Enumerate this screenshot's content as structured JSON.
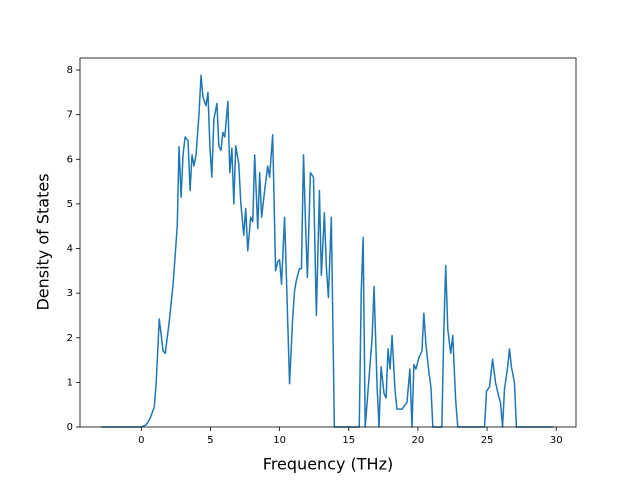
{
  "chart_data": {
    "type": "line",
    "x_label": "Frequency (THz)",
    "y_label": "Density of States",
    "xlim": [
      -4.43,
      31.43
    ],
    "ylim": [
      0,
      8.27
    ],
    "xticks": [
      0,
      5,
      10,
      15,
      20,
      25,
      30
    ],
    "yticks": [
      0,
      1,
      2,
      3,
      4,
      5,
      6,
      7,
      8
    ],
    "series": [
      {
        "color": "#1f77b4",
        "x": [
          -2.88,
          0,
          0.36,
          0.65,
          0.94,
          1.08,
          1.3,
          1.58,
          1.73,
          2.0,
          2.3,
          2.6,
          2.73,
          2.88,
          3.02,
          3.17,
          3.38,
          3.53,
          3.67,
          3.81,
          3.96,
          4.17,
          4.32,
          4.46,
          4.68,
          4.82,
          4.96,
          5.1,
          5.25,
          5.47,
          5.61,
          5.76,
          5.9,
          6.04,
          6.26,
          6.4,
          6.55,
          6.69,
          6.83,
          7.05,
          7.2,
          7.41,
          7.55,
          7.7,
          7.91,
          8.06,
          8.2,
          8.42,
          8.56,
          8.7,
          8.92,
          9.14,
          9.28,
          9.5,
          9.71,
          9.86,
          10.0,
          10.14,
          10.36,
          10.5,
          10.72,
          10.94,
          11.08,
          11.22,
          11.44,
          11.58,
          11.73,
          11.87,
          12.01,
          12.23,
          12.45,
          12.66,
          12.88,
          13.02,
          13.24,
          13.38,
          13.53,
          13.74,
          13.96,
          15.76,
          15.9,
          16.04,
          16.19,
          16.69,
          16.83,
          17.05,
          17.19,
          17.34,
          17.55,
          17.7,
          17.84,
          17.99,
          18.13,
          18.35,
          18.49,
          18.85,
          19.21,
          19.42,
          19.57,
          19.71,
          19.86,
          20.07,
          20.29,
          20.43,
          20.58,
          20.79,
          20.94,
          21.08,
          21.73,
          21.87,
          22.01,
          22.16,
          22.37,
          22.52,
          22.73,
          22.88,
          24.82,
          24.96,
          25.18,
          25.4,
          25.61,
          25.83,
          25.97,
          26.12,
          26.26,
          26.47,
          26.62,
          26.76,
          26.98,
          27.12,
          29.78
        ],
        "values": [
          0,
          0,
          0.05,
          0.2,
          0.45,
          1.0,
          2.42,
          1.7,
          1.65,
          2.3,
          3.2,
          4.5,
          6.28,
          5.15,
          6.1,
          6.5,
          6.42,
          5.3,
          6.1,
          5.85,
          6.1,
          7.0,
          7.88,
          7.4,
          7.2,
          7.5,
          6.3,
          5.6,
          6.9,
          7.25,
          6.3,
          6.2,
          6.6,
          6.5,
          7.3,
          5.7,
          6.25,
          5.0,
          6.3,
          5.9,
          5.0,
          4.3,
          4.9,
          3.95,
          4.7,
          4.6,
          6.1,
          4.45,
          5.7,
          4.7,
          5.3,
          5.85,
          5.6,
          6.55,
          3.5,
          3.7,
          3.75,
          3.2,
          4.7,
          3.3,
          0.97,
          2.4,
          3.05,
          3.3,
          3.55,
          3.55,
          6.1,
          4.6,
          3.35,
          5.7,
          5.6,
          2.5,
          5.3,
          3.4,
          4.8,
          3.6,
          2.9,
          4.7,
          0,
          0,
          3.0,
          4.25,
          0,
          2.0,
          3.15,
          0.9,
          0,
          1.35,
          0.75,
          0.65,
          1.75,
          1.3,
          2.05,
          0.8,
          0.4,
          0.4,
          0.55,
          1.3,
          0,
          1.4,
          1.3,
          1.55,
          1.7,
          2.55,
          1.85,
          1.25,
          0.9,
          0,
          0,
          2.1,
          3.62,
          2.2,
          1.65,
          2.05,
          0.6,
          0,
          0,
          0.8,
          0.9,
          1.52,
          1.0,
          0.7,
          0.55,
          0,
          0.85,
          1.3,
          1.75,
          1.35,
          1.0,
          0,
          0
        ]
      }
    ]
  }
}
